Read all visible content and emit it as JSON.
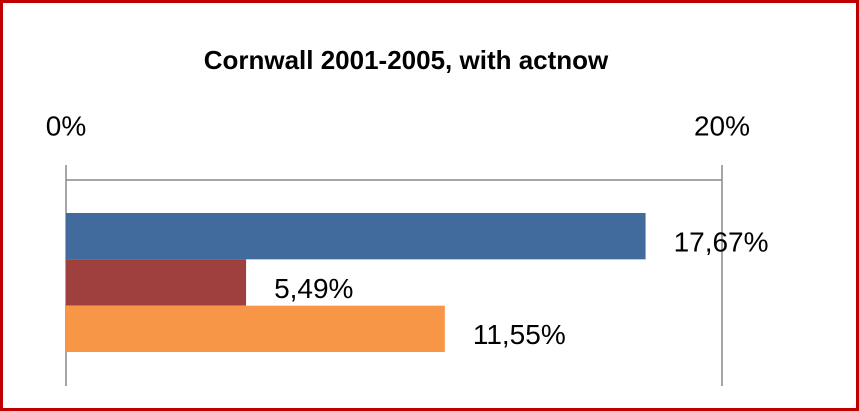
{
  "chart_data": {
    "type": "bar",
    "orientation": "horizontal",
    "title": "Cornwall 2001-2005,  with actnow",
    "values": [
      17.67,
      5.49,
      11.55
    ],
    "value_labels": [
      "17,67%",
      "5,49%",
      "11,55%"
    ],
    "colors": [
      "#416b9c",
      "#a0403e",
      "#f79646"
    ],
    "xlim": [
      0,
      20
    ],
    "xticks": [
      {
        "value": 0,
        "label": "0%"
      },
      {
        "value": 20,
        "label": "20%"
      }
    ]
  }
}
